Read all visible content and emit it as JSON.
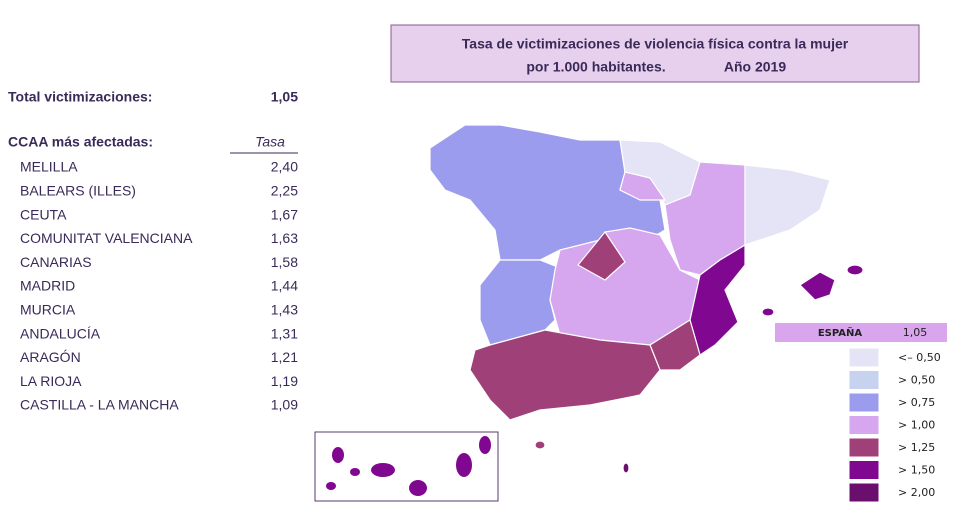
{
  "header": {
    "title_line1": "Tasa de victimizaciones de violencia física contra la mujer",
    "title_line2": "por 1.000 habitantes.",
    "year": "Año 2019"
  },
  "summary": {
    "label": "Total victimizaciones:",
    "value": "1,05"
  },
  "list": {
    "header": "CCAA más afectadas:",
    "column": "Tasa",
    "rows": [
      [
        "MELILLA",
        "2,40"
      ],
      [
        "BALEARS (ILLES)",
        "2,25"
      ],
      [
        "CEUTA",
        "1,67"
      ],
      [
        "COMUNITAT VALENCIANA",
        "1,63"
      ],
      [
        "CANARIAS",
        "1,58"
      ],
      [
        "MADRID",
        "1,44"
      ],
      [
        "MURCIA",
        "1,43"
      ],
      [
        "ANDALUCÍA",
        "1,31"
      ],
      [
        "ARAGÓN",
        "1,21"
      ],
      [
        "LA RIOJA",
        "1,19"
      ],
      [
        "CASTILLA - LA MANCHA",
        "1,09"
      ]
    ]
  },
  "legend": {
    "espana_label": "ESPAÑA",
    "espana_value": "1,05",
    "items": [
      {
        "label": "<– 0,50",
        "color": "#e4e4f6"
      },
      {
        "label": "> 0,50",
        "color": "#c6d2ee"
      },
      {
        "label": "> 0,75",
        "color": "#9c9cee"
      },
      {
        "label": "> 1,00",
        "color": "#d6a6ee"
      },
      {
        "label": "> 1,25",
        "color": "#a04078"
      },
      {
        "label": "> 1,50",
        "color": "#800890"
      },
      {
        "label": "> 2,00",
        "color": "#6a0f6e"
      }
    ]
  }
}
